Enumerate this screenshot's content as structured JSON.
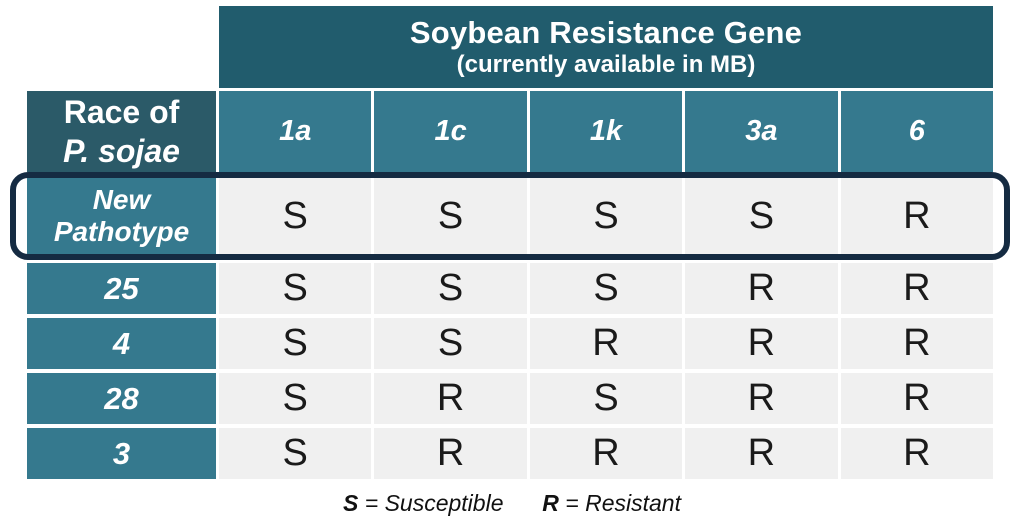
{
  "chart_data": {
    "type": "table",
    "title": "Soybean Resistance Gene",
    "subtitle": "(currently available in MB)",
    "row_header": {
      "line1": "Race of",
      "line2": "P. sojae"
    },
    "columns": [
      "1a",
      "1c",
      "1k",
      "3a",
      "6"
    ],
    "rows": [
      {
        "race": "New Pathotype",
        "highlighted": true,
        "values": [
          "S",
          "S",
          "S",
          "S",
          "R"
        ]
      },
      {
        "race": "25",
        "highlighted": false,
        "values": [
          "S",
          "S",
          "S",
          "R",
          "R"
        ]
      },
      {
        "race": "4",
        "highlighted": false,
        "values": [
          "S",
          "S",
          "R",
          "R",
          "R"
        ]
      },
      {
        "race": "28",
        "highlighted": false,
        "values": [
          "S",
          "R",
          "S",
          "R",
          "R"
        ]
      },
      {
        "race": "3",
        "highlighted": false,
        "values": [
          "S",
          "R",
          "R",
          "R",
          "R"
        ]
      }
    ],
    "legend": {
      "s_key": "S",
      "s_rest": "= Susceptible",
      "r_key": "R",
      "r_rest": "= Resistant"
    }
  },
  "colors": {
    "banner_teal": "#215c6d",
    "race_header_teal": "#2b5a68",
    "cell_header_teal": "#35798e",
    "data_cell_gray": "#f0f0f0",
    "highlight_outline_navy": "#152b42",
    "text_dark": "#1a1a1a",
    "text_white": "#ffffff"
  }
}
